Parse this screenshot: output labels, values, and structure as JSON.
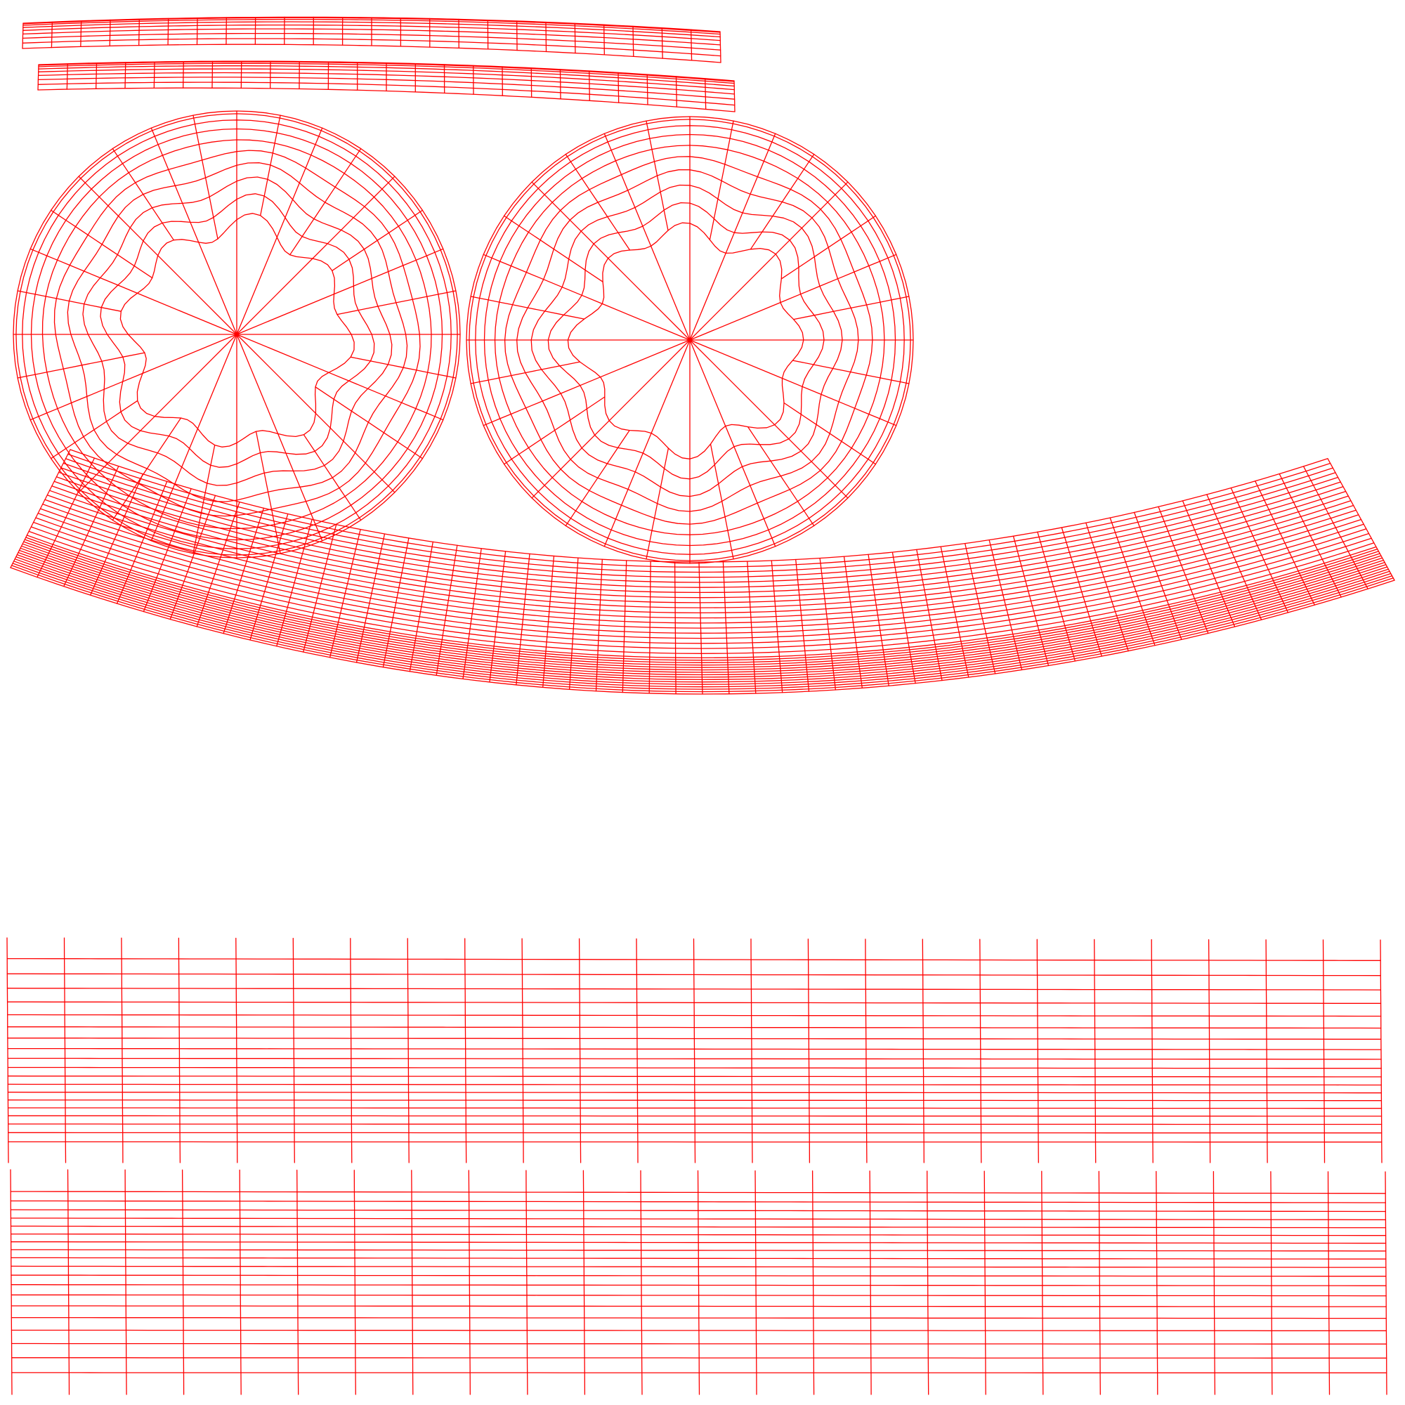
{
  "colors": {
    "background": "#ffffff",
    "wire": "#ff0000"
  },
  "uv_layout": {
    "islands": [
      {
        "name": "top-arc-strip",
        "kind": "arc-strip",
        "columns": 24,
        "rows": 8
      },
      {
        "name": "second-arc-strip",
        "kind": "arc-strip",
        "columns": 24,
        "rows": 8
      },
      {
        "name": "left-disc",
        "kind": "disc",
        "spokes": 32,
        "rings": 10
      },
      {
        "name": "right-disc",
        "kind": "disc",
        "spokes": 32,
        "rings": 10
      },
      {
        "name": "curved-band",
        "kind": "curved-band",
        "columns": 52,
        "rows": 34
      },
      {
        "name": "upper-rectangle-grid",
        "kind": "rect-grid",
        "columns": 24,
        "rows": 18
      },
      {
        "name": "lower-rectangle-grid",
        "kind": "rect-grid",
        "columns": 24,
        "rows": 18
      }
    ]
  }
}
